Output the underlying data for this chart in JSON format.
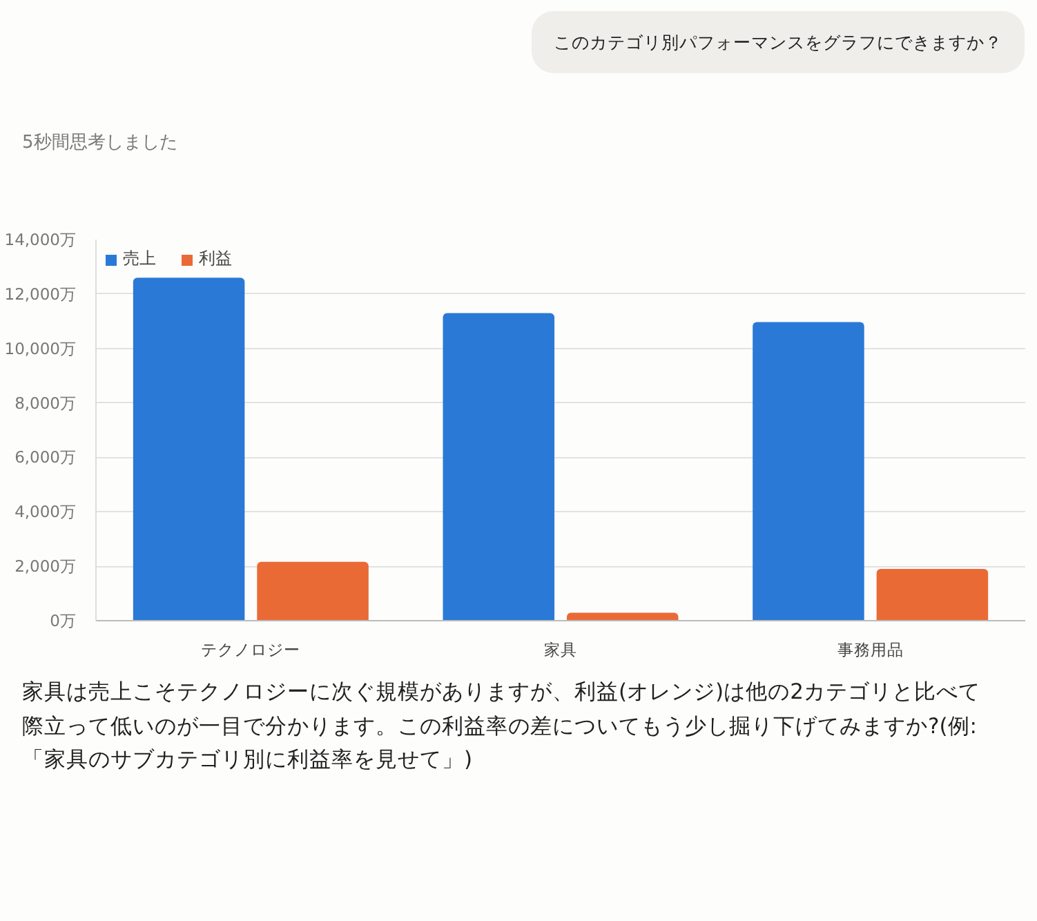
{
  "chart_data": {
    "type": "bar",
    "annotations": [
      "このカテゴリ別パフォーマンスをグラフにできますか？",
      "5秒間思考しました",
      "家具は売上こそテクノロジーに次ぐ規模がありますが、利益(オレンジ)は他の2カテゴリと比べて際立って低いのが一目で分かります。この利益率の差についてもう少し掘り下げてみますか?(例:「家具のサブカテゴリ別に利益率を見せて」)"
    ],
    "categories": [
      "テクノロジー",
      "家具",
      "事務用品"
    ],
    "series": [
      {
        "name": "売上",
        "color": "#2a79d6",
        "values": [
          12600,
          11300,
          10970
        ]
      },
      {
        "name": "利益",
        "color": "#ea6a36",
        "values": [
          2160,
          290,
          1900
        ]
      }
    ],
    "ylim": [
      0,
      14000
    ],
    "yticks": [
      {
        "value": 0,
        "label": "0万"
      },
      {
        "value": 2000,
        "label": "2,000万"
      },
      {
        "value": 4000,
        "label": "4,000万"
      },
      {
        "value": 6000,
        "label": "6,000万"
      },
      {
        "value": 8000,
        "label": "8,000万"
      },
      {
        "value": 10000,
        "label": "10,000万"
      },
      {
        "value": 12000,
        "label": "12,000万"
      },
      {
        "value": 14000,
        "label": "14,000万"
      }
    ],
    "grid": "y",
    "legend": "top left"
  }
}
